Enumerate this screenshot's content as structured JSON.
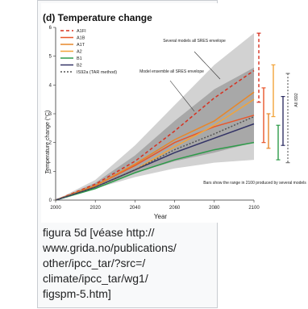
{
  "chart_data": {
    "type": "line",
    "title": "(d) Temperature change",
    "xlabel": "Year",
    "ylabel": "Temperature change (°C)",
    "xlim": [
      2000,
      2100
    ],
    "ylim": [
      0,
      6
    ],
    "x_ticks": [
      "2000",
      "2020",
      "2040",
      "2060",
      "2080",
      "2100"
    ],
    "y_ticks": [
      "0",
      "1",
      "2",
      "3",
      "4",
      "5",
      "6"
    ],
    "x": [
      2000,
      2020,
      2040,
      2060,
      2080,
      2100
    ],
    "legend_position": "top-left",
    "series": [
      {
        "name": "A1FI",
        "color": "#d7301f",
        "dash": "4,3",
        "values": [
          0,
          0.55,
          1.35,
          2.4,
          3.55,
          4.5
        ]
      },
      {
        "name": "A1B",
        "color": "#e8562b",
        "dash": "",
        "values": [
          0,
          0.5,
          1.2,
          2.0,
          2.55,
          2.95
        ]
      },
      {
        "name": "A1T",
        "color": "#e7872a",
        "dash": "",
        "values": [
          0,
          0.5,
          1.25,
          2.1,
          2.75,
          3.75
        ]
      },
      {
        "name": "A2",
        "color": "#f2a43a",
        "dash": "",
        "values": [
          0,
          0.45,
          1.05,
          1.85,
          2.6,
          3.5
        ]
      },
      {
        "name": "B1",
        "color": "#2e9b4a",
        "dash": "",
        "values": [
          0,
          0.4,
          0.95,
          1.4,
          1.75,
          2.0
        ]
      },
      {
        "name": "B2",
        "color": "#333366",
        "dash": "",
        "values": [
          0,
          0.45,
          1.05,
          1.65,
          2.15,
          2.65
        ]
      },
      {
        "name": "IS92a (TAR method)",
        "color": "#555555",
        "dash": "2,2",
        "values": [
          0,
          0.45,
          1.05,
          1.75,
          2.3,
          2.9
        ]
      }
    ],
    "envelopes": [
      {
        "name": "outer",
        "color": "#d2d2d2",
        "lower": [
          0,
          0.4,
          0.8,
          1.1,
          1.3,
          1.4
        ],
        "upper": [
          0,
          0.7,
          1.9,
          3.3,
          4.7,
          5.8
        ]
      },
      {
        "name": "inner",
        "color": "#a8a8a8",
        "lower": [
          0,
          0.45,
          0.95,
          1.35,
          1.65,
          2.0
        ],
        "upper": [
          0,
          0.6,
          1.55,
          2.75,
          3.85,
          4.6
        ]
      }
    ],
    "bars": [
      {
        "name": "A1FI",
        "color": "#d7301f",
        "dash": "4,3",
        "low": 3.4,
        "high": 5.8
      },
      {
        "name": "A1B",
        "color": "#e8562b",
        "dash": "",
        "low": 2.0,
        "high": 3.9
      },
      {
        "name": "A1T",
        "color": "#e7872a",
        "dash": "",
        "low": 1.8,
        "high": 3.0
      },
      {
        "name": "A2",
        "color": "#f2a43a",
        "dash": "",
        "low": 2.9,
        "high": 4.7
      },
      {
        "name": "B1",
        "color": "#2e9b4a",
        "dash": "",
        "low": 1.4,
        "high": 2.6
      },
      {
        "name": "B2",
        "color": "#333366",
        "dash": "",
        "low": 1.9,
        "high": 3.6
      },
      {
        "name": "IS92a",
        "color": "#777777",
        "dash": "2,2",
        "low": 1.3,
        "high": 4.4
      }
    ],
    "annotations": {
      "envelope_note": "Several models all SRES envelope",
      "ensemble_note": "Model ensemble all SRES envelope",
      "bars_note": "Bars show the range in 2100 produced by several models",
      "is92_note": "All IS92"
    }
  },
  "caption": {
    "lines": [
      "figura 5d [véase http://",
      "www.grida.no/publications/",
      "other/ipcc_tar/?src=/",
      "climate/ipcc_tar/wg1/",
      "figspm-5.htm]"
    ]
  }
}
